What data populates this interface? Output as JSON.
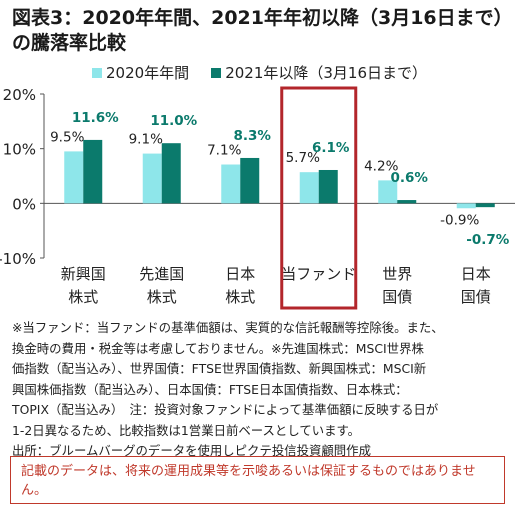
{
  "title": "図表3：2020年年間、2021年年初以降（3月16日まで）の騰落率比較",
  "colors": {
    "series1": "#8ee6ea",
    "series2": "#0b7a6c",
    "label2": "#0b7a6c",
    "highlight_box": "#b3262b",
    "axis": "#555555"
  },
  "chart_data": {
    "type": "bar",
    "categories": [
      "新興国\n株式",
      "先進国\n株式",
      "日本\n株式",
      "当ファンド",
      "世界\n国債",
      "日本\n国債"
    ],
    "series": [
      {
        "name": "2020年年間",
        "values": [
          9.5,
          9.1,
          7.1,
          5.7,
          4.2,
          -0.9
        ],
        "labels": [
          "9.5%",
          "9.1%",
          "7.1%",
          "5.7%",
          "4.2%",
          "-0.9%"
        ]
      },
      {
        "name": "2021年以降（3月16日まで）",
        "values": [
          11.6,
          11.0,
          8.3,
          6.1,
          0.6,
          -0.7
        ],
        "labels": [
          "11.6%",
          "11.0%",
          "8.3%",
          "6.1%",
          "0.6%",
          "-0.7%"
        ]
      }
    ],
    "ylim": [
      -10,
      20
    ],
    "yticks": [
      20,
      10,
      0,
      -10
    ],
    "ytick_labels": [
      "20%",
      "10%",
      "0%",
      "-10%"
    ],
    "highlight_category": "当ファンド"
  },
  "note": "※当ファンド：当ファンドの基準価額は、実質的な信託報酬等控除後。また、\n換金時の費用・税金等は考慮しておりません。※先進国株式：MSCI世界株\n価指数（配当込み）、世界国債：FTSE世界国債指数、新興国株式：MSCI新\n興国株価指数（配当込み）、日本国債：FTSE日本国債指数、日本株式：\nTOPIX（配当込み）　注：投資対象ファンドによって基準価額に反映する日が\n1-2日異なるため、比較指数は1営業日前ベースとしています。\n出所：ブルームバーグのデータを使用しピクテ投信投資顧問作成",
  "disclaimer": "記載のデータは、将来の運用成果等を示唆あるいは保証するものではありません。"
}
